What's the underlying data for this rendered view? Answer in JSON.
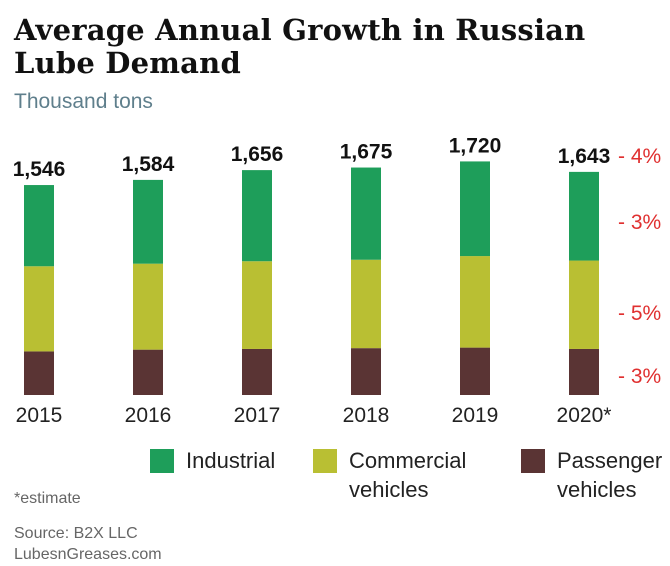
{
  "header": {
    "title": "Average Annual Growth in Russian Lube Demand",
    "subtitle": "Thousand tons"
  },
  "chart_data": {
    "type": "bar",
    "stacked": true,
    "categories": [
      "2015",
      "2016",
      "2017",
      "2018",
      "2019",
      "2020*"
    ],
    "totals": [
      1546,
      1584,
      1656,
      1675,
      1720,
      1643
    ],
    "total_labels": [
      "1,546",
      "1,584",
      "1,656",
      "1,675",
      "1,720",
      "1,643"
    ],
    "series": [
      {
        "name": "Passenger vehicles",
        "color": "#5a3434",
        "values": [
          321,
          334,
          339,
          345,
          349,
          339
        ]
      },
      {
        "name": "Commercial vehicles",
        "color": "#b9bf33",
        "values": [
          627,
          633,
          646,
          651,
          674,
          651
        ]
      },
      {
        "name": "Industrial",
        "color": "#1e9e5a",
        "values": [
          598,
          617,
          671,
          679,
          697,
          653
        ]
      }
    ],
    "growth_annotations": [
      "- 4%",
      "- 3%",
      "- 5%",
      "- 3%"
    ],
    "growth_color": "#e03030",
    "legend_placement": "bottom",
    "grid": false
  },
  "legend": [
    {
      "label": "Industrial",
      "color": "#1e9e5a"
    },
    {
      "label": "Commercial vehicles",
      "color": "#b9bf33"
    },
    {
      "label": "Passenger vehicles",
      "color": "#5a3434"
    }
  ],
  "footnote": "*estimate",
  "source": {
    "line1": "Source: B2X LLC",
    "line2": "LubesnGreases.com"
  }
}
